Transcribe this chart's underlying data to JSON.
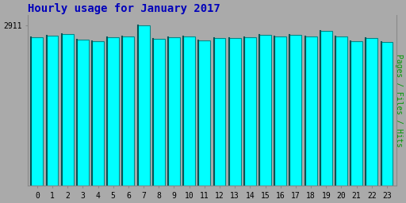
{
  "title": "Hourly usage for January 2017",
  "ylabel": "Pages / Files / Hits",
  "xlabel_values": [
    0,
    1,
    2,
    3,
    4,
    5,
    6,
    7,
    8,
    9,
    10,
    11,
    12,
    13,
    14,
    15,
    16,
    17,
    18,
    19,
    20,
    21,
    22,
    23
  ],
  "values": [
    2700,
    2730,
    2760,
    2660,
    2630,
    2700,
    2720,
    2911,
    2670,
    2700,
    2715,
    2650,
    2680,
    2690,
    2700,
    2740,
    2720,
    2745,
    2710,
    2810,
    2720,
    2630,
    2690,
    2610
  ],
  "ytick_label": "2911",
  "ytick_value": 2911,
  "ylim_min": 0,
  "ylim_max": 3100,
  "bar_color": "#00FFFF",
  "bar_edge_color": "#008888",
  "bar_dark_edge": "#005555",
  "background_color": "#AAAAAA",
  "plot_bg_color": "#AAAAAA",
  "title_color": "#0000BB",
  "ylabel_color": "#009900",
  "title_fontsize": 10,
  "ylabel_fontsize": 7,
  "tick_fontsize": 7
}
